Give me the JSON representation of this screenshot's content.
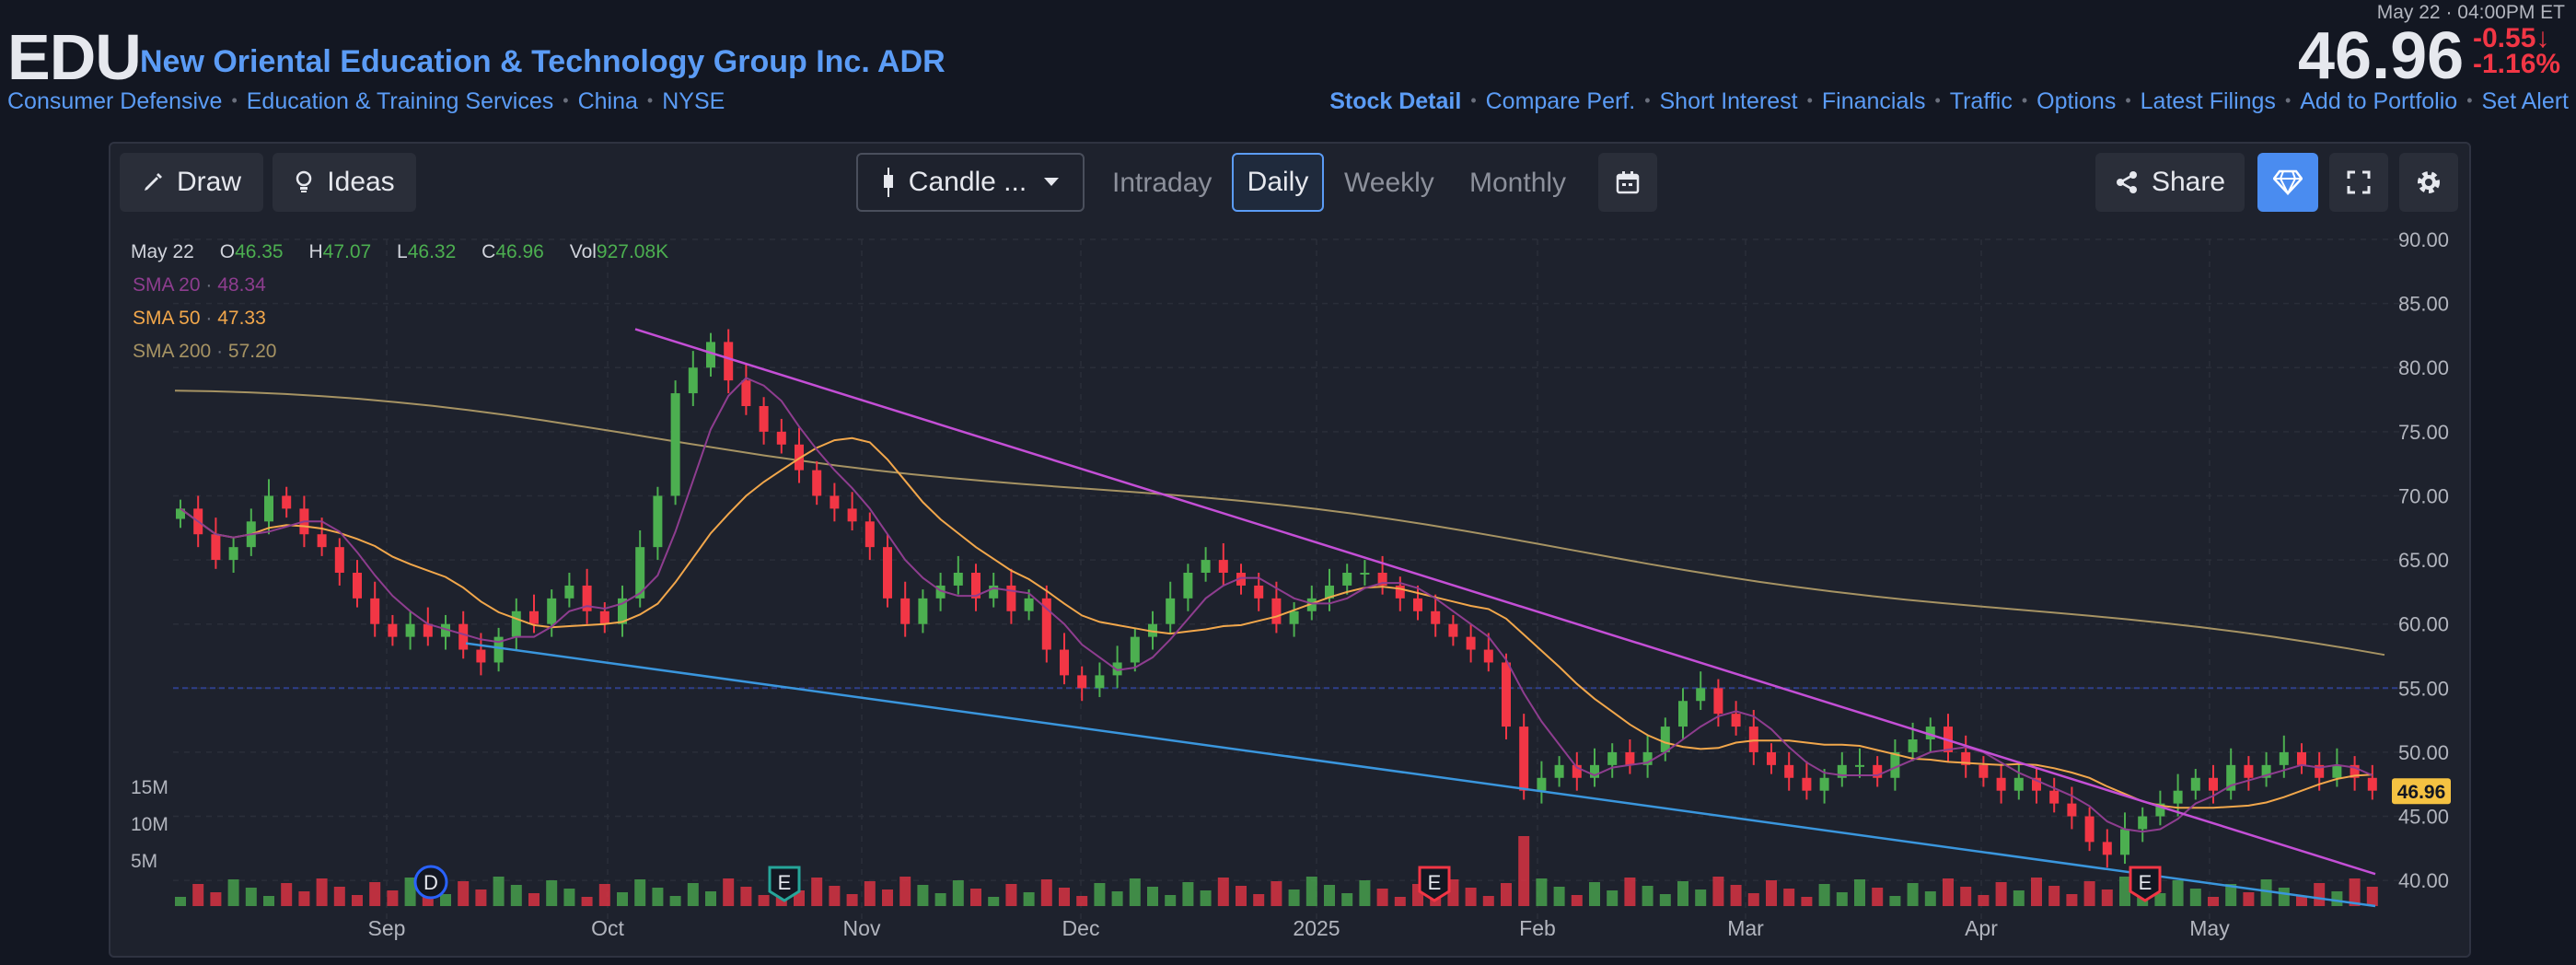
{
  "header": {
    "ticker": "EDU",
    "company": "New Oriental Education & Technology Group Inc. ADR",
    "breadcrumbs": [
      "Consumer Defensive",
      "Education & Training Services",
      "China",
      "NYSE"
    ],
    "links": [
      "Stock Detail",
      "Compare Perf.",
      "Short Interest",
      "Financials",
      "Traffic",
      "Options",
      "Latest Filings",
      "Add to Portfolio",
      "Set Alert"
    ],
    "timestamp": "May 22 · 04:00PM ET",
    "price": "46.96",
    "change": "-0.55",
    "change_pct": "-1.16%",
    "down_color": "#f23645"
  },
  "toolbar": {
    "draw": "Draw",
    "ideas": "Ideas",
    "chart_type": "Candle ...",
    "periods": [
      "Intraday",
      "Daily",
      "Weekly",
      "Monthly"
    ],
    "active_period": "Daily",
    "share": "Share"
  },
  "ohlc": {
    "date": "May 22",
    "o_label": "O",
    "o": "46.35",
    "h_label": "H",
    "h": "47.07",
    "l_label": "L",
    "l": "46.32",
    "c_label": "C",
    "c": "46.96",
    "vol_label": "Vol",
    "vol": "927.08K"
  },
  "sma": [
    {
      "label": "SMA 20",
      "value": "48.34",
      "color": "#9c3f9e"
    },
    {
      "label": "SMA 50",
      "value": "47.33",
      "color": "#f2a74b"
    },
    {
      "label": "SMA 200",
      "value": "57.20",
      "color": "#a69363"
    }
  ],
  "price_tag": "46.96",
  "chart_data": {
    "type": "candlestick",
    "ylim": [
      38,
      90
    ],
    "y_ticks": [
      "90.00",
      "85.00",
      "80.00",
      "75.00",
      "70.00",
      "65.00",
      "60.00",
      "55.00",
      "50.00",
      "45.00",
      "40.00"
    ],
    "y_tick_values": [
      90,
      85,
      80,
      75,
      70,
      65,
      60,
      55,
      50,
      45,
      40
    ],
    "x_labels": [
      "Sep",
      "Oct",
      "Nov",
      "Dec",
      "2025",
      "Feb",
      "Mar",
      "Apr",
      "May"
    ],
    "volume_ticks": [
      "15M",
      "10M",
      "5M"
    ],
    "events": [
      {
        "label": "D",
        "color": "#2962ff"
      },
      {
        "label": "E",
        "color": "#26a69a"
      },
      {
        "label": "E",
        "color": "#f23645"
      },
      {
        "label": "E",
        "color": "#f23645"
      }
    ],
    "close_series": [
      69,
      67,
      65,
      66,
      68,
      70,
      69,
      67,
      66,
      64,
      62,
      60,
      59,
      60,
      59,
      60,
      58,
      57,
      59,
      61,
      60,
      62,
      63,
      61,
      60,
      62,
      66,
      70,
      78,
      80,
      82,
      79,
      77,
      75,
      74,
      72,
      70,
      69,
      68,
      66,
      62,
      60,
      62,
      63,
      64,
      62,
      63,
      61,
      62,
      58,
      56,
      55,
      56,
      57,
      59,
      60,
      62,
      64,
      65,
      64,
      63,
      62,
      60,
      61,
      62,
      63,
      64,
      64,
      63,
      62,
      61,
      60,
      59,
      58,
      57,
      52,
      47,
      48,
      49,
      48,
      49,
      50,
      49,
      50,
      52,
      54,
      55,
      53,
      52,
      50,
      49,
      48,
      47,
      48,
      49,
      49,
      48,
      50,
      51,
      52,
      50,
      49,
      48,
      47,
      48,
      47,
      46,
      45,
      43,
      42,
      44,
      45,
      46,
      47,
      48,
      47,
      49,
      48,
      49,
      50,
      49,
      48,
      49,
      48,
      47
    ]
  }
}
